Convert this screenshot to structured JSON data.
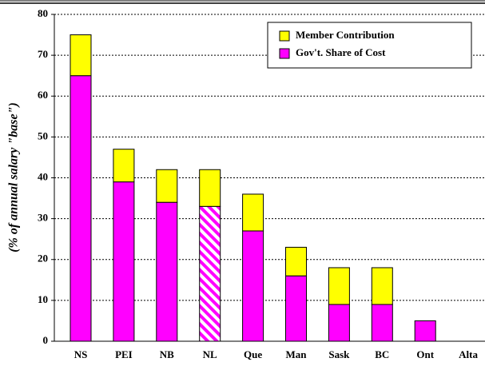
{
  "chart_data": {
    "type": "stacked_bar",
    "y_label": "(% of annual salary \"base\")",
    "categories": [
      "NS",
      "PEI",
      "NB",
      "NL",
      "Que",
      "Man",
      "Sask",
      "BC",
      "Ont",
      "Alta"
    ],
    "series": [
      {
        "name": "Gov't. Share of Cost",
        "color": "#ff00ff",
        "values": [
          65,
          39,
          34,
          33,
          27,
          16,
          9,
          9,
          5,
          0
        ]
      },
      {
        "name": "Member Contribution",
        "color": "#ffff00",
        "values": [
          10,
          8,
          8,
          9,
          9,
          7,
          9,
          9,
          0,
          0
        ]
      }
    ],
    "hatched": [
      "NL"
    ],
    "ylim": [
      0,
      80
    ],
    "yticks": [
      0,
      10,
      20,
      30,
      40,
      50,
      60,
      70,
      80
    ],
    "grid": true,
    "legend": "top-right"
  }
}
